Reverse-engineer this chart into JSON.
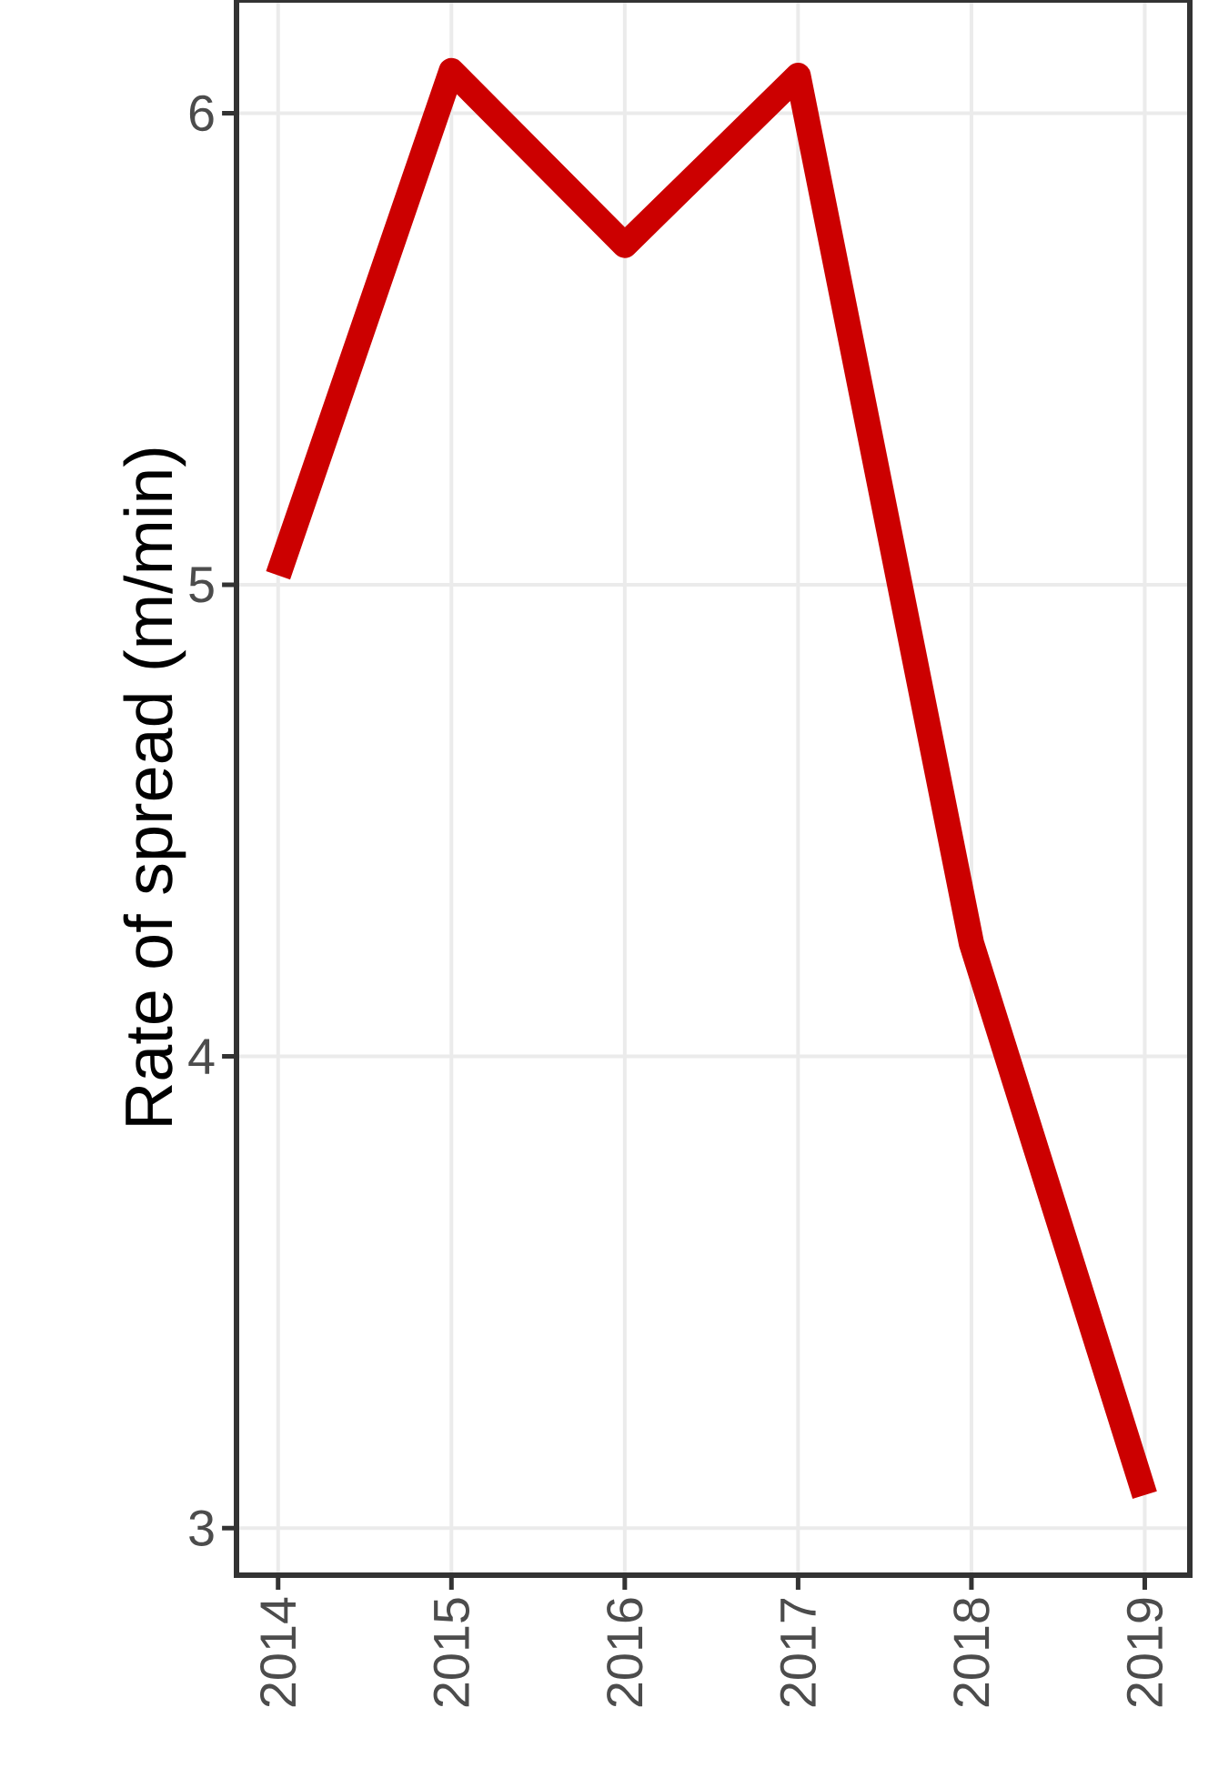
{
  "chart_data": {
    "type": "line",
    "ylabel": "Rate of spread (m/min)",
    "x": [
      2014,
      2015,
      2016,
      2017,
      2018,
      2019
    ],
    "series": [
      {
        "color": "#cc0000",
        "values": [
          5.02,
          6.09,
          5.72,
          6.08,
          4.24,
          3.07
        ]
      }
    ],
    "xlim": [
      2013.76,
      2019.26
    ],
    "ylim": [
      2.9,
      6.24
    ],
    "xticks": [
      2014,
      2015,
      2016,
      2017,
      2018,
      2019
    ],
    "yticks": [
      3,
      4,
      5,
      6
    ],
    "grid": true,
    "line_style": "solid",
    "marker": "none"
  }
}
